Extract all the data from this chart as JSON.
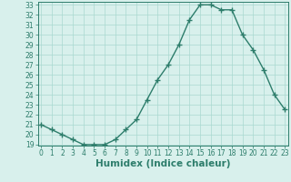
{
  "title": "",
  "xlabel": "Humidex (Indice chaleur)",
  "ylabel": "",
  "x": [
    0,
    1,
    2,
    3,
    4,
    5,
    6,
    7,
    8,
    9,
    10,
    11,
    12,
    13,
    14,
    15,
    16,
    17,
    18,
    19,
    20,
    21,
    22,
    23
  ],
  "y": [
    21.0,
    20.5,
    20.0,
    19.5,
    19.0,
    19.0,
    19.0,
    19.5,
    20.5,
    21.5,
    23.5,
    25.5,
    27.0,
    29.0,
    31.5,
    33.0,
    33.0,
    32.5,
    32.5,
    30.0,
    28.5,
    26.5,
    24.0,
    22.5
  ],
  "line_color": "#2d7d6b",
  "marker": "+",
  "marker_size": 4,
  "marker_linewidth": 1.0,
  "background_color": "#d8f0ec",
  "grid_color": "#aad8d0",
  "ylim_min": 19,
  "ylim_max": 33,
  "xlim_min": 0,
  "xlim_max": 23,
  "yticks": [
    19,
    20,
    21,
    22,
    23,
    24,
    25,
    26,
    27,
    28,
    29,
    30,
    31,
    32,
    33
  ],
  "xticks": [
    0,
    1,
    2,
    3,
    4,
    5,
    6,
    7,
    8,
    9,
    10,
    11,
    12,
    13,
    14,
    15,
    16,
    17,
    18,
    19,
    20,
    21,
    22,
    23
  ],
  "xlabel_fontsize": 7.5,
  "tick_fontsize": 5.5,
  "line_width": 1.0,
  "spine_color": "#2d7d6b",
  "tick_color": "#2d7d6b"
}
